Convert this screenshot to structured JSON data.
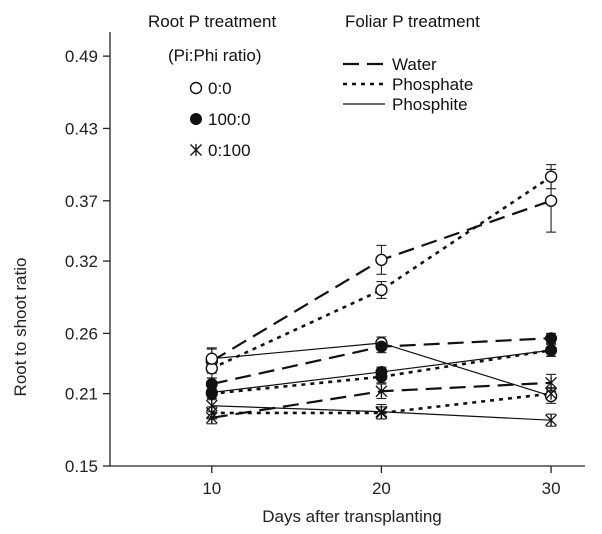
{
  "chart_data": {
    "type": "line",
    "xlabel": "Days after transplanting",
    "ylabel": "Root to shoot ratio",
    "x": [
      10,
      20,
      30
    ],
    "xlim": [
      4,
      32
    ],
    "ylim": [
      0.15,
      0.51
    ],
    "xticks": [
      10,
      20,
      30
    ],
    "yticks": [
      0.15,
      0.21,
      0.26,
      0.32,
      0.37,
      0.43,
      0.49
    ],
    "ytick_labels": [
      "0.15",
      "0.21",
      "0.26",
      "0.32",
      "0.37",
      "0.43",
      "0.49"
    ],
    "legend_root": {
      "title": "Root P treatment",
      "subtitle": "(Pi:Phi ratio)",
      "items": [
        {
          "label": "0:0",
          "marker": "open-circle"
        },
        {
          "label": "100:0",
          "marker": "filled-circle"
        },
        {
          "label": "0:100",
          "marker": "asterisk"
        }
      ]
    },
    "legend_foliar": {
      "title": "Foliar P treatment",
      "items": [
        {
          "label": "Water",
          "dash": "long-dash"
        },
        {
          "label": "Phosphate",
          "dash": "short-dash"
        },
        {
          "label": "Phosphite",
          "dash": "solid"
        }
      ]
    },
    "series": [
      {
        "root": "0:0",
        "foliar": "Water",
        "marker": "open-circle",
        "dash": "long-dash",
        "values": [
          0.237,
          0.321,
          0.37
        ],
        "errors": [
          0.01,
          0.012,
          0.026
        ]
      },
      {
        "root": "0:0",
        "foliar": "Phosphate",
        "marker": "open-circle",
        "dash": "short-dash",
        "values": [
          0.231,
          0.296,
          0.39
        ],
        "errors": [
          0.008,
          0.007,
          0.01
        ]
      },
      {
        "root": "0:0",
        "foliar": "Phosphite",
        "marker": "open-circle",
        "dash": "solid",
        "values": [
          0.239,
          0.252,
          0.208
        ],
        "errors": [
          0.009,
          0.005,
          0.006
        ]
      },
      {
        "root": "100:0",
        "foliar": "Water",
        "marker": "filled-circle",
        "dash": "long-dash",
        "values": [
          0.218,
          0.249,
          0.256
        ],
        "errors": [
          0.005,
          0.005,
          0.004
        ]
      },
      {
        "root": "100:0",
        "foliar": "Phosphate",
        "marker": "filled-circle",
        "dash": "short-dash",
        "values": [
          0.21,
          0.224,
          0.246
        ],
        "errors": [
          0.005,
          0.005,
          0.005
        ]
      },
      {
        "root": "100:0",
        "foliar": "Phosphite",
        "marker": "filled-circle",
        "dash": "solid",
        "values": [
          0.211,
          0.228,
          0.246
        ],
        "errors": [
          0.005,
          0.004,
          0.005
        ]
      },
      {
        "root": "0:100",
        "foliar": "Water",
        "marker": "asterisk",
        "dash": "long-dash",
        "values": [
          0.19,
          0.212,
          0.219
        ],
        "errors": [
          0.005,
          0.006,
          0.007
        ]
      },
      {
        "root": "0:100",
        "foliar": "Phosphate",
        "marker": "asterisk",
        "dash": "short-dash",
        "values": [
          0.194,
          0.194,
          0.21
        ],
        "errors": [
          0.005,
          0.005,
          0.005
        ]
      },
      {
        "root": "0:100",
        "foliar": "Phosphite",
        "marker": "asterisk",
        "dash": "solid",
        "values": [
          0.2,
          0.195,
          0.188
        ],
        "errors": [
          0.01,
          0.006,
          0.005
        ]
      }
    ]
  }
}
